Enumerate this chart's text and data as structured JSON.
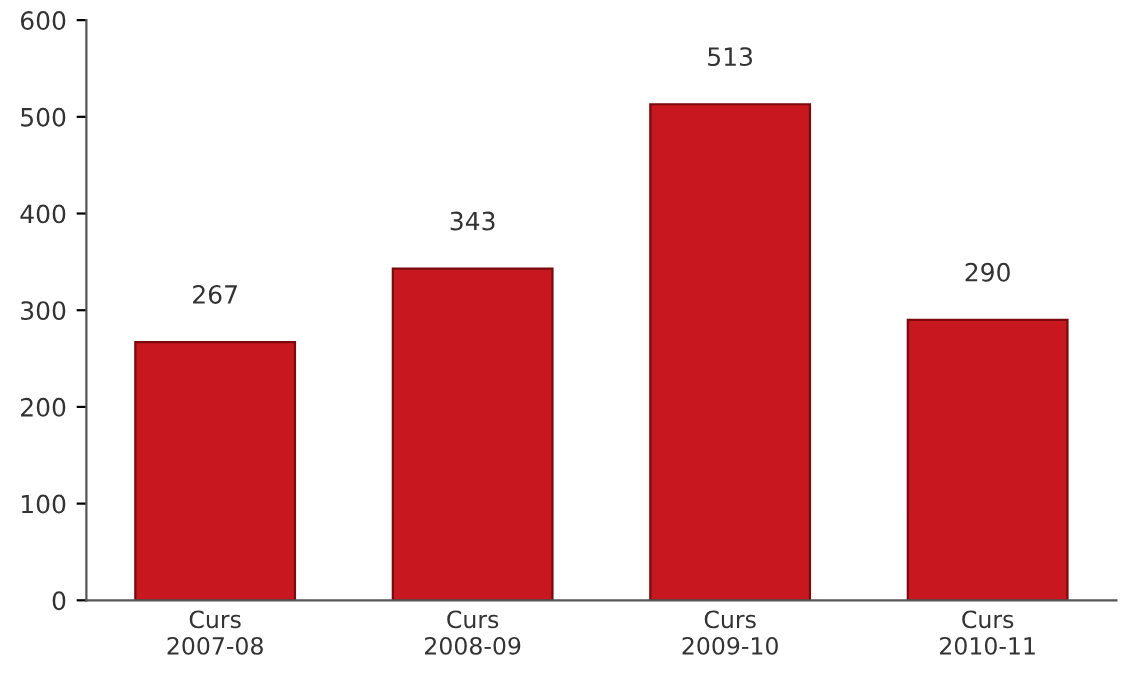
{
  "chart_data": {
    "type": "bar",
    "categories": [
      "Curs\n2007-08",
      "Curs\n2008-09",
      "Curs\n2009-10",
      "Curs\n2010-11"
    ],
    "values": [
      267,
      343,
      513,
      290
    ],
    "color": "#c8171e",
    "ylim": [
      0,
      600
    ],
    "yticks": [
      0,
      100,
      200,
      300,
      400,
      500,
      600
    ],
    "grid": false,
    "data_labels": true
  }
}
